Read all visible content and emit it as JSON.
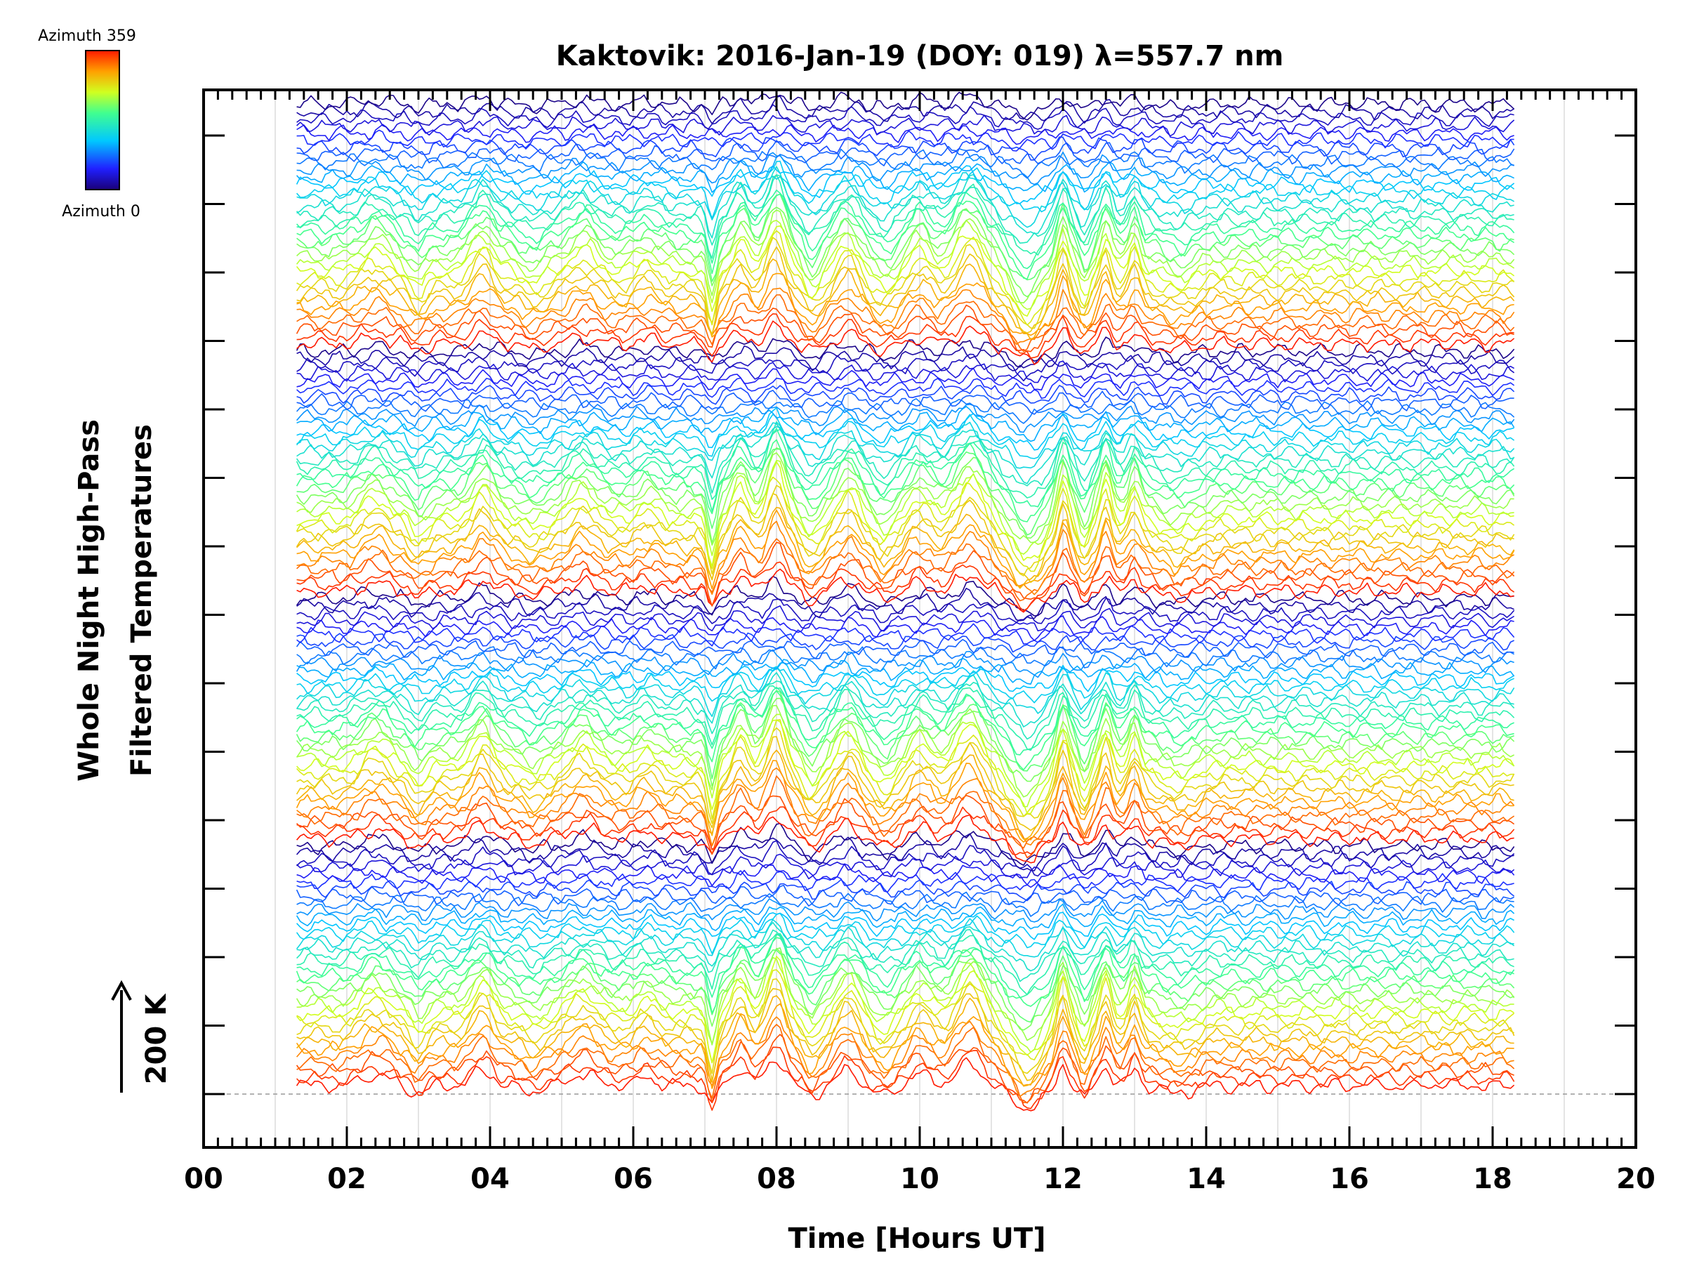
{
  "chart_data": {
    "type": "line",
    "title": "Kaktovik: 2016-Jan-19 (DOY: 019) λ=557.7 nm",
    "xlabel": "Time [Hours UT]",
    "ylabel_line1": "Whole Night High-Pass",
    "ylabel_line2": "Filtered Temperatures",
    "scale_label": "200 K",
    "xlim": [
      0,
      20
    ],
    "x_ticks": [
      "00",
      "02",
      "04",
      "06",
      "08",
      "10",
      "12",
      "14",
      "16",
      "18",
      "20"
    ],
    "y_offset_units": 15,
    "time_range_hours": [
      1.3,
      18.3
    ],
    "series_count": 136,
    "stacked_offset_series": true,
    "colorbar": {
      "top_label": "Azimuth 359",
      "bottom_label": "Azimuth 0",
      "colormap": "rainbow",
      "min": 0,
      "max": 359
    }
  }
}
